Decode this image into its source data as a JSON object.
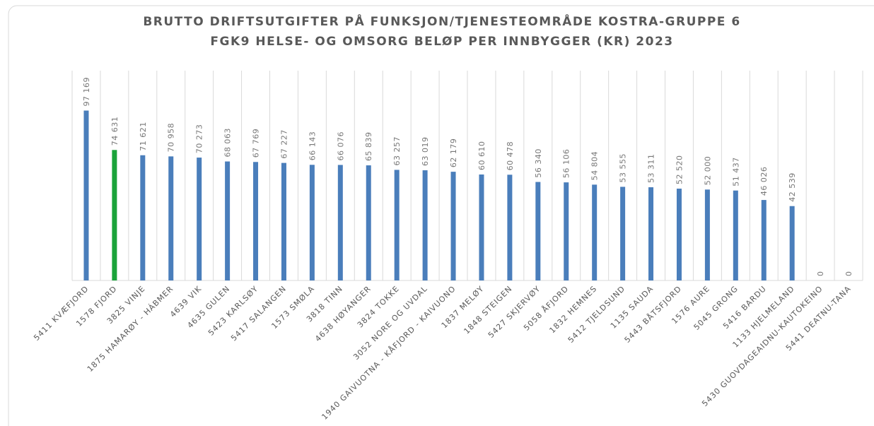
{
  "chart_data": {
    "type": "bar",
    "title": [
      "BRUTTO DRIFTSUTGIFTER PÅ FUNKSJON/TJENESTEOMRÅDE KOSTRA-GRUPPE 6",
      "FGK9 HELSE- OG OMSORG   BELØP PER INNBYGGER (KR) 2023"
    ],
    "categories": [
      "5411 KVÆFJORD",
      "1578 FJORD",
      "3825 VINJE",
      "1875 HAMARØY - HÁBMER",
      "4639 VIK",
      "4635 GULEN",
      "5423 KARLSØY",
      "5417 SALANGEN",
      "1573 SMØLA",
      "3818 TINN",
      "4638 HØYANGER",
      "3824 TOKKE",
      "3052 NORE OG UVDAL",
      "1940 GAIVUOTNA - KÅFJORD - KAIVUONO",
      "1837 MELØY",
      "1848 STEIGEN",
      "5427 SKJERVØY",
      "5058 ÅFJORD",
      "1832 HEMNES",
      "5412 TJELDSUND",
      "1135 SAUDA",
      "5443 BÅTSFJORD",
      "1576 AURE",
      "5045 GRONG",
      "5416 BARDU",
      "1133 HJELMELAND",
      "5430 GUOVDAGEAIDNU-KAUTOKEINO",
      "5441 DEATNU-TANA"
    ],
    "values": [
      97169,
      74631,
      71621,
      70958,
      70273,
      68063,
      67769,
      67227,
      66143,
      66076,
      65839,
      63257,
      63019,
      62179,
      60610,
      60478,
      56340,
      56106,
      54804,
      53555,
      53311,
      52520,
      52000,
      51437,
      46026,
      42539,
      0,
      0
    ],
    "value_labels": [
      "97 169",
      "74 631",
      "71 621",
      "70 958",
      "70 273",
      "68 063",
      "67 769",
      "67 227",
      "66 143",
      "66 076",
      "65 839",
      "63 257",
      "63 019",
      "62 179",
      "60 610",
      "60 478",
      "56 340",
      "56 106",
      "54 804",
      "53 555",
      "53 311",
      "52 520",
      "52 000",
      "51 437",
      "46 026",
      "42 539",
      "0",
      "0"
    ],
    "colors": [
      "#4a7ebb",
      "#1aa33a",
      "#4a7ebb",
      "#4a7ebb",
      "#4a7ebb",
      "#4a7ebb",
      "#4a7ebb",
      "#4a7ebb",
      "#4a7ebb",
      "#4a7ebb",
      "#4a7ebb",
      "#4a7ebb",
      "#4a7ebb",
      "#4a7ebb",
      "#4a7ebb",
      "#4a7ebb",
      "#4a7ebb",
      "#4a7ebb",
      "#4a7ebb",
      "#4a7ebb",
      "#4a7ebb",
      "#4a7ebb",
      "#4a7ebb",
      "#4a7ebb",
      "#4a7ebb",
      "#4a7ebb",
      "#4a7ebb",
      "#4a7ebb"
    ],
    "ylim": [
      0,
      120000
    ],
    "grid": true
  }
}
